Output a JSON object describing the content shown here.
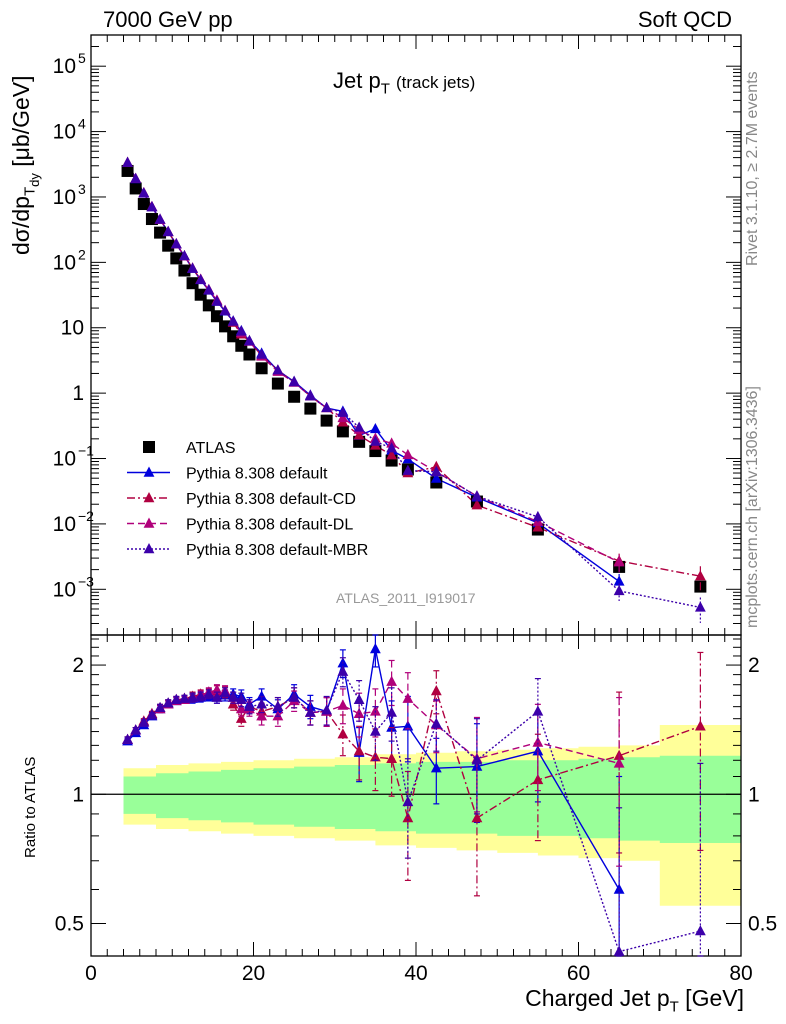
{
  "header": {
    "left": "7000 GeV pp",
    "right": "Soft QCD"
  },
  "main_panel": {
    "title_main": "Jet p",
    "title_sub": "T",
    "title_paren": "(track jets)",
    "ylabel": "dσ/dp_Tdy [μb/GeV]",
    "ylabel_parts": {
      "a": "dσ/dp",
      "sub1": "T",
      "sub2": "dy",
      "b": " [μb/GeV]"
    },
    "analysis_id": "ATLAS_2011_I919017",
    "yticks": [
      {
        "label": "10",
        "exp": "5"
      },
      {
        "label": "10",
        "exp": "4"
      },
      {
        "label": "10",
        "exp": "3"
      },
      {
        "label": "10",
        "exp": "2"
      },
      {
        "label": "10",
        "exp": ""
      },
      {
        "label": "1",
        "exp": ""
      },
      {
        "label": "10",
        "exp": "−1"
      },
      {
        "label": "10",
        "exp": "−2"
      },
      {
        "label": "10",
        "exp": "−3"
      }
    ]
  },
  "ratio_panel": {
    "ylabel": "Ratio to ATLAS",
    "yticks": [
      "2",
      "1",
      "0.5"
    ]
  },
  "side_labels": {
    "rivet": "Rivet 3.1.10, ≥ 2.7M events",
    "mcplots": "mcplots.cern.ch [arXiv:1306.3436]"
  },
  "xaxis": {
    "label_main": "Charged Jet p",
    "label_sub": "T",
    "label_unit": " [GeV]",
    "ticks": [
      "0",
      "20",
      "40",
      "60",
      "80"
    ]
  },
  "legend": [
    {
      "name": "ATLAS",
      "color": "#000000",
      "marker": "square",
      "dash": "none"
    },
    {
      "name": "Pythia 8.308 default",
      "color": "#0000dd",
      "marker": "triangle",
      "dash": "solid"
    },
    {
      "name": "Pythia 8.308 default-CD",
      "color": "#b00040",
      "marker": "triangle",
      "dash": "dashdot"
    },
    {
      "name": "Pythia 8.308 default-DL",
      "color": "#b0007a",
      "marker": "triangle",
      "dash": "dashed"
    },
    {
      "name": "Pythia 8.308 default-MBR",
      "color": "#3c00aa",
      "marker": "triangle",
      "dash": "dotted"
    }
  ],
  "chart_data": {
    "type": "scatter",
    "xscale": "linear",
    "yscale": "log",
    "xlim": [
      0,
      80
    ],
    "ylim": [
      0.0002,
      300000
    ],
    "ratio_ylim": [
      0.42,
      2.35
    ],
    "ratio_yscale": "log",
    "x": [
      4.5,
      5.5,
      6.5,
      7.5,
      8.5,
      9.5,
      10.5,
      11.5,
      12.5,
      13.5,
      14.5,
      15.5,
      16.5,
      17.5,
      18.5,
      19.5,
      21,
      23,
      25,
      27,
      29,
      31,
      33,
      35,
      37,
      39,
      42.5,
      47.5,
      55,
      65,
      75
    ],
    "atlas": [
      2500,
      1350,
      780,
      460,
      285,
      180,
      115,
      75,
      48,
      32,
      22,
      15,
      10.5,
      7.4,
      5.3,
      3.9,
      2.4,
      1.4,
      0.88,
      0.58,
      0.38,
      0.26,
      0.18,
      0.13,
      0.093,
      0.068,
      0.043,
      0.022,
      0.0082,
      0.0022,
      0.0011
    ],
    "atlas_band_x": [
      4,
      8,
      12,
      16,
      20,
      25,
      30,
      35,
      40,
      45,
      50,
      55,
      60,
      65,
      70,
      80
    ],
    "atlas_band_inner": [
      0.1,
      0.12,
      0.13,
      0.14,
      0.15,
      0.16,
      0.17,
      0.18,
      0.19,
      0.19,
      0.2,
      0.2,
      0.21,
      0.22,
      0.23,
      0.23
    ],
    "atlas_band_outer": [
      0.15,
      0.17,
      0.18,
      0.19,
      0.2,
      0.21,
      0.22,
      0.24,
      0.25,
      0.26,
      0.27,
      0.28,
      0.29,
      0.3,
      0.45,
      0.45
    ],
    "series": [
      {
        "name": "Pythia 8.308 default",
        "ratio": [
          1.33,
          1.39,
          1.45,
          1.52,
          1.58,
          1.62,
          1.65,
          1.66,
          1.67,
          1.68,
          1.69,
          1.68,
          1.7,
          1.71,
          1.69,
          1.62,
          1.69,
          1.58,
          1.71,
          1.6,
          1.56,
          2.02,
          1.25,
          2.18,
          1.43,
          1.44,
          1.15,
          1.16,
          1.26,
          0.6,
          null
        ]
      },
      {
        "name": "Pythia 8.308 default-CD",
        "ratio": [
          1.34,
          1.41,
          1.48,
          1.54,
          1.59,
          1.63,
          1.66,
          1.67,
          1.69,
          1.71,
          1.72,
          1.74,
          1.73,
          1.62,
          1.5,
          1.6,
          1.56,
          1.6,
          1.68,
          1.55,
          1.56,
          1.38,
          1.26,
          1.22,
          1.21,
          0.88,
          1.74,
          0.88,
          1.08,
          1.23,
          1.44
        ]
      },
      {
        "name": "Pythia 8.308 default-DL",
        "ratio": [
          1.34,
          1.41,
          1.47,
          1.53,
          1.58,
          1.62,
          1.65,
          1.66,
          1.68,
          1.7,
          1.73,
          1.75,
          1.74,
          1.68,
          1.58,
          1.58,
          1.52,
          1.52,
          1.65,
          1.55,
          1.56,
          1.61,
          1.54,
          1.56,
          1.83,
          1.67,
          1.45,
          1.21,
          1.32,
          1.18,
          null
        ]
      },
      {
        "name": "Pythia 8.308 default-MBR",
        "ratio": [
          1.34,
          1.41,
          1.47,
          1.53,
          1.59,
          1.63,
          1.66,
          1.67,
          1.68,
          1.69,
          1.71,
          1.68,
          1.72,
          1.68,
          1.66,
          1.6,
          1.62,
          1.6,
          1.68,
          1.55,
          1.57,
          1.93,
          1.66,
          1.4,
          1.55,
          0.96,
          1.46,
          1.2,
          1.56,
          0.43,
          0.48
        ]
      }
    ],
    "series_errors": [
      0.02,
      0.02,
      0.02,
      0.02,
      0.03,
      0.03,
      0.03,
      0.03,
      0.04,
      0.04,
      0.04,
      0.05,
      0.05,
      0.05,
      0.06,
      0.06,
      0.07,
      0.08,
      0.09,
      0.1,
      0.12,
      0.15,
      0.18,
      0.2,
      0.22,
      0.25,
      0.2,
      0.3,
      0.3,
      0.5,
      0.7
    ]
  }
}
